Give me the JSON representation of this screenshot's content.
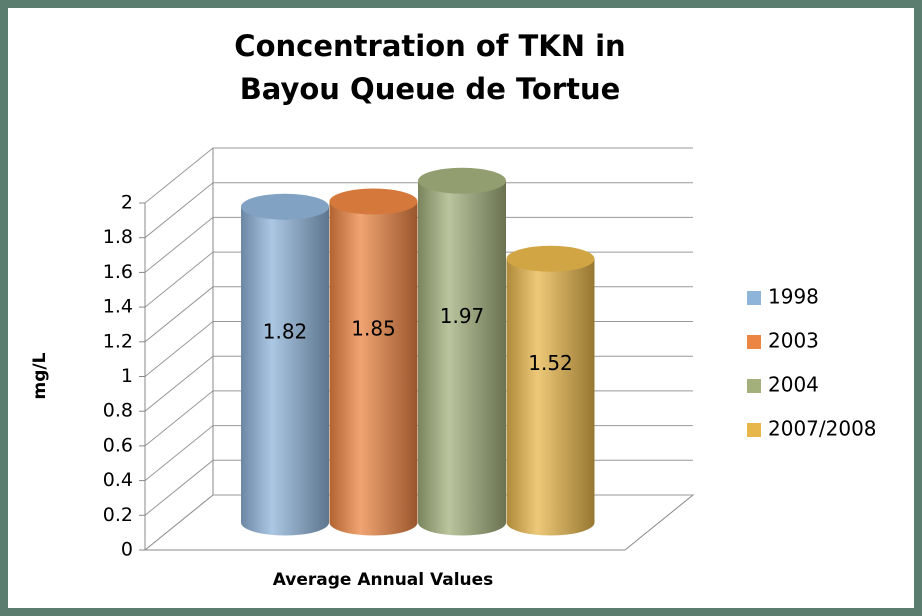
{
  "chart_data": {
    "type": "bar3d",
    "title": [
      "Concentration of TKN in",
      "Bayou Queue de Tortue"
    ],
    "xlabel": "Average Annual Values",
    "ylabel": "mg/L",
    "categories": [
      "Average Annual Values"
    ],
    "series": [
      {
        "name": "1998",
        "color": "#8fb4d9",
        "values": [
          1.82
        ]
      },
      {
        "name": "2003",
        "color": "#ec8543",
        "values": [
          1.85
        ]
      },
      {
        "name": "2004",
        "color": "#a3b07c",
        "values": [
          1.97
        ]
      },
      {
        "name": "2007/2008",
        "color": "#e8b74c",
        "values": [
          1.52
        ]
      }
    ],
    "ylim": [
      0,
      2
    ],
    "yticks": [
      0,
      0.2,
      0.4,
      0.6,
      0.8,
      1,
      1.2,
      1.4,
      1.6,
      1.8,
      2
    ],
    "grid": true,
    "legend": "right"
  }
}
